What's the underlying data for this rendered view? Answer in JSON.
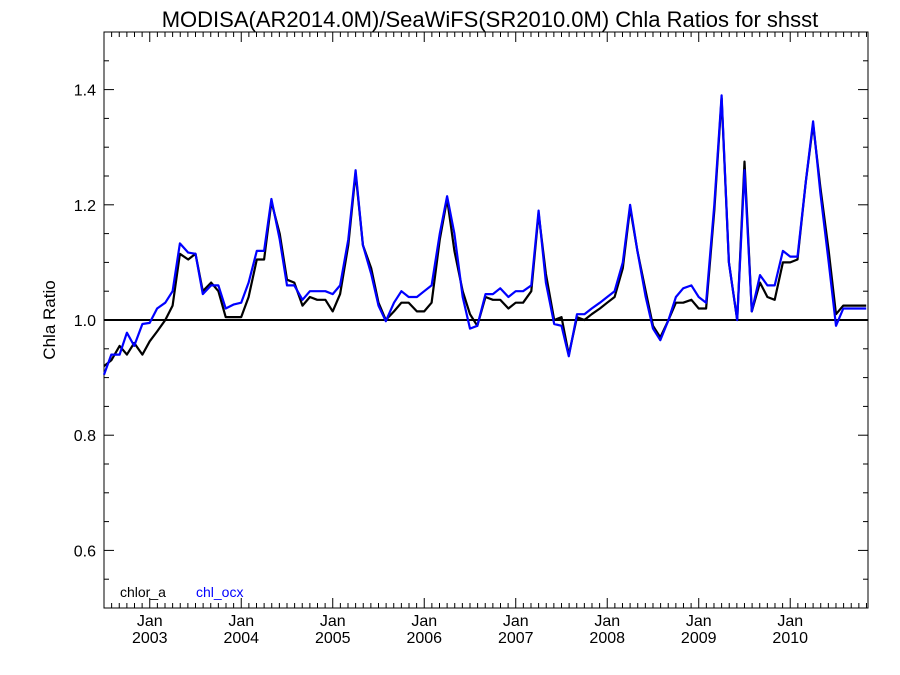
{
  "chart_data": {
    "type": "line",
    "title": "MODISA(AR2014.0M)/SeaWiFS(SR2010.0M)  Chla Ratios for shsst",
    "xlabel": "",
    "ylabel": "Chla Ratio",
    "xlim": [
      2002.5,
      2010.85
    ],
    "ylim": [
      0.5,
      1.5
    ],
    "yticks": [
      {
        "v": 0.6,
        "label": "0.6"
      },
      {
        "v": 0.8,
        "label": "0.8"
      },
      {
        "v": 1.0,
        "label": "1.0"
      },
      {
        "v": 1.2,
        "label": "1.2"
      },
      {
        "v": 1.4,
        "label": "1.4"
      }
    ],
    "xticks": [
      {
        "v": 2003,
        "month": "Jan",
        "year": "2003"
      },
      {
        "v": 2004,
        "month": "Jan",
        "year": "2004"
      },
      {
        "v": 2005,
        "month": "Jan",
        "year": "2005"
      },
      {
        "v": 2006,
        "month": "Jan",
        "year": "2006"
      },
      {
        "v": 2007,
        "month": "Jan",
        "year": "2007"
      },
      {
        "v": 2008,
        "month": "Jan",
        "year": "2008"
      },
      {
        "v": 2009,
        "month": "Jan",
        "year": "2009"
      },
      {
        "v": 2010,
        "month": "Jan",
        "year": "2010"
      }
    ],
    "reference_line": 1.0,
    "grid": false,
    "legend_position": "bottom-left",
    "series": [
      {
        "name": "chlor_a",
        "color": "#000000",
        "x": [
          2002.5,
          2002.58,
          2002.67,
          2002.75,
          2002.83,
          2002.92,
          2003.0,
          2003.08,
          2003.17,
          2003.25,
          2003.33,
          2003.42,
          2003.5,
          2003.58,
          2003.67,
          2003.75,
          2003.83,
          2003.92,
          2004.0,
          2004.08,
          2004.17,
          2004.25,
          2004.33,
          2004.42,
          2004.5,
          2004.58,
          2004.67,
          2004.75,
          2004.83,
          2004.92,
          2005.0,
          2005.08,
          2005.17,
          2005.25,
          2005.33,
          2005.42,
          2005.5,
          2005.58,
          2005.67,
          2005.75,
          2005.83,
          2005.92,
          2006.0,
          2006.08,
          2006.17,
          2006.25,
          2006.33,
          2006.42,
          2006.5,
          2006.58,
          2006.67,
          2006.75,
          2006.83,
          2006.92,
          2007.0,
          2007.08,
          2007.17,
          2007.25,
          2007.33,
          2007.42,
          2007.5,
          2007.58,
          2007.67,
          2007.75,
          2007.83,
          2007.92,
          2008.0,
          2008.08,
          2008.17,
          2008.25,
          2008.33,
          2008.42,
          2008.5,
          2008.58,
          2008.67,
          2008.75,
          2008.83,
          2008.92,
          2009.0,
          2009.08,
          2009.17,
          2009.25,
          2009.33,
          2009.42,
          2009.5,
          2009.58,
          2009.67,
          2009.75,
          2009.83,
          2009.92,
          2010.0,
          2010.08,
          2010.17,
          2010.25,
          2010.33,
          2010.42,
          2010.5,
          2010.58,
          2010.67,
          2010.75,
          2010.83
        ],
        "values": [
          0.92,
          0.93,
          0.955,
          0.94,
          0.96,
          0.94,
          0.963,
          0.98,
          1.0,
          1.025,
          1.115,
          1.105,
          1.115,
          1.05,
          1.065,
          1.05,
          1.005,
          1.005,
          1.005,
          1.04,
          1.105,
          1.105,
          1.205,
          1.15,
          1.07,
          1.065,
          1.025,
          1.04,
          1.035,
          1.035,
          1.015,
          1.045,
          1.13,
          1.255,
          1.13,
          1.09,
          1.03,
          1.0,
          1.015,
          1.03,
          1.03,
          1.015,
          1.015,
          1.03,
          1.14,
          1.21,
          1.12,
          1.05,
          1.01,
          0.99,
          1.04,
          1.035,
          1.035,
          1.02,
          1.03,
          1.03,
          1.05,
          1.185,
          1.08,
          1.0,
          1.005,
          0.94,
          1.005,
          1.0,
          1.01,
          1.02,
          1.03,
          1.04,
          1.09,
          1.195,
          1.12,
          1.05,
          0.99,
          0.97,
          1.0,
          1.03,
          1.03,
          1.035,
          1.02,
          1.02,
          1.19,
          1.385,
          1.1,
          1.0,
          1.275,
          1.015,
          1.065,
          1.04,
          1.035,
          1.1,
          1.1,
          1.105,
          1.24,
          1.34,
          1.23,
          1.12,
          1.01,
          1.025,
          1.025,
          1.025,
          1.025
        ]
      },
      {
        "name": "chl_ocx",
        "color": "#0000ff",
        "x": [
          2002.5,
          2002.58,
          2002.67,
          2002.75,
          2002.83,
          2002.92,
          2003.0,
          2003.08,
          2003.17,
          2003.25,
          2003.33,
          2003.42,
          2003.5,
          2003.58,
          2003.67,
          2003.75,
          2003.83,
          2003.92,
          2004.0,
          2004.08,
          2004.17,
          2004.25,
          2004.33,
          2004.42,
          2004.5,
          2004.58,
          2004.67,
          2004.75,
          2004.83,
          2004.92,
          2005.0,
          2005.08,
          2005.17,
          2005.25,
          2005.33,
          2005.42,
          2005.5,
          2005.58,
          2005.67,
          2005.75,
          2005.83,
          2005.92,
          2006.0,
          2006.08,
          2006.17,
          2006.25,
          2006.33,
          2006.42,
          2006.5,
          2006.58,
          2006.67,
          2006.75,
          2006.83,
          2006.92,
          2007.0,
          2007.08,
          2007.17,
          2007.25,
          2007.33,
          2007.42,
          2007.5,
          2007.58,
          2007.67,
          2007.75,
          2007.83,
          2007.92,
          2008.0,
          2008.08,
          2008.17,
          2008.25,
          2008.33,
          2008.42,
          2008.5,
          2008.58,
          2008.67,
          2008.75,
          2008.83,
          2008.92,
          2009.0,
          2009.08,
          2009.17,
          2009.25,
          2009.33,
          2009.42,
          2009.5,
          2009.58,
          2009.67,
          2009.75,
          2009.83,
          2009.92,
          2010.0,
          2010.08,
          2010.17,
          2010.25,
          2010.33,
          2010.42,
          2010.5,
          2010.58,
          2010.67,
          2010.75,
          2010.83
        ],
        "values": [
          0.905,
          0.94,
          0.94,
          0.978,
          0.955,
          0.993,
          0.995,
          1.02,
          1.03,
          1.05,
          1.133,
          1.117,
          1.115,
          1.045,
          1.06,
          1.06,
          1.02,
          1.027,
          1.03,
          1.065,
          1.12,
          1.12,
          1.21,
          1.14,
          1.06,
          1.06,
          1.035,
          1.05,
          1.05,
          1.05,
          1.045,
          1.06,
          1.14,
          1.26,
          1.13,
          1.08,
          1.025,
          0.998,
          1.03,
          1.05,
          1.04,
          1.04,
          1.05,
          1.06,
          1.15,
          1.215,
          1.15,
          1.04,
          0.985,
          0.99,
          1.045,
          1.045,
          1.055,
          1.04,
          1.05,
          1.05,
          1.06,
          1.19,
          1.065,
          0.993,
          0.99,
          0.937,
          1.01,
          1.01,
          1.02,
          1.03,
          1.04,
          1.05,
          1.1,
          1.2,
          1.12,
          1.04,
          0.985,
          0.965,
          1.0,
          1.04,
          1.055,
          1.06,
          1.04,
          1.03,
          1.2,
          1.39,
          1.1,
          1.0,
          1.26,
          1.015,
          1.078,
          1.06,
          1.06,
          1.12,
          1.11,
          1.11,
          1.24,
          1.345,
          1.22,
          1.1,
          0.99,
          1.02,
          1.02,
          1.02,
          1.02
        ]
      }
    ]
  }
}
